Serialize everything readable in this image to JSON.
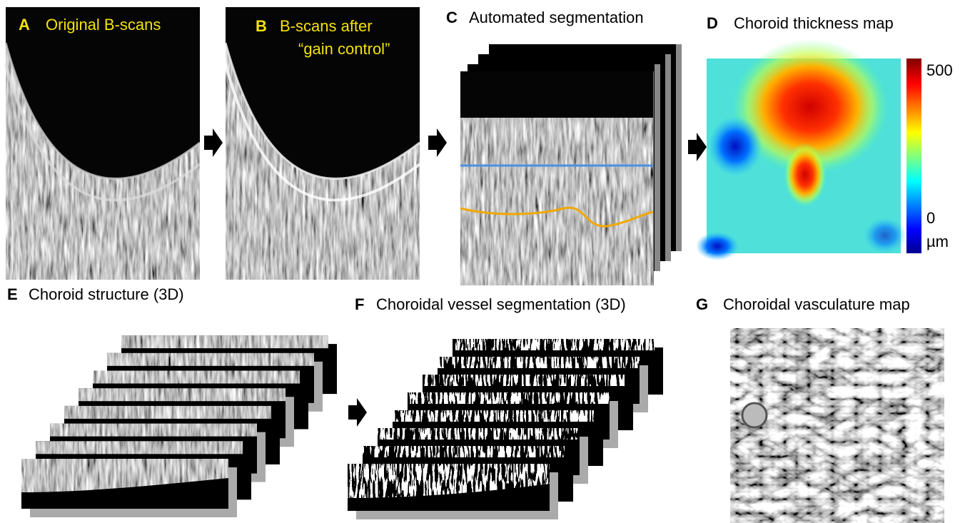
{
  "panels": [
    {
      "letter": "A",
      "title": "Original B-scans"
    },
    {
      "letter": "B",
      "title": "B-scans after",
      "subtitle": "“gain control”"
    },
    {
      "letter": "C",
      "title": "Automated segmentation"
    },
    {
      "letter": "D",
      "title": "Choroid thickness map"
    },
    {
      "letter": "E",
      "title": "Choroid structure (3D)"
    },
    {
      "letter": "F",
      "title": "Choroidal vessel segmentation (3D)"
    },
    {
      "letter": "G",
      "title": "Choroidal vasculature map"
    }
  ],
  "colorbar": {
    "max": 500,
    "min": 0,
    "unit": "µm"
  }
}
